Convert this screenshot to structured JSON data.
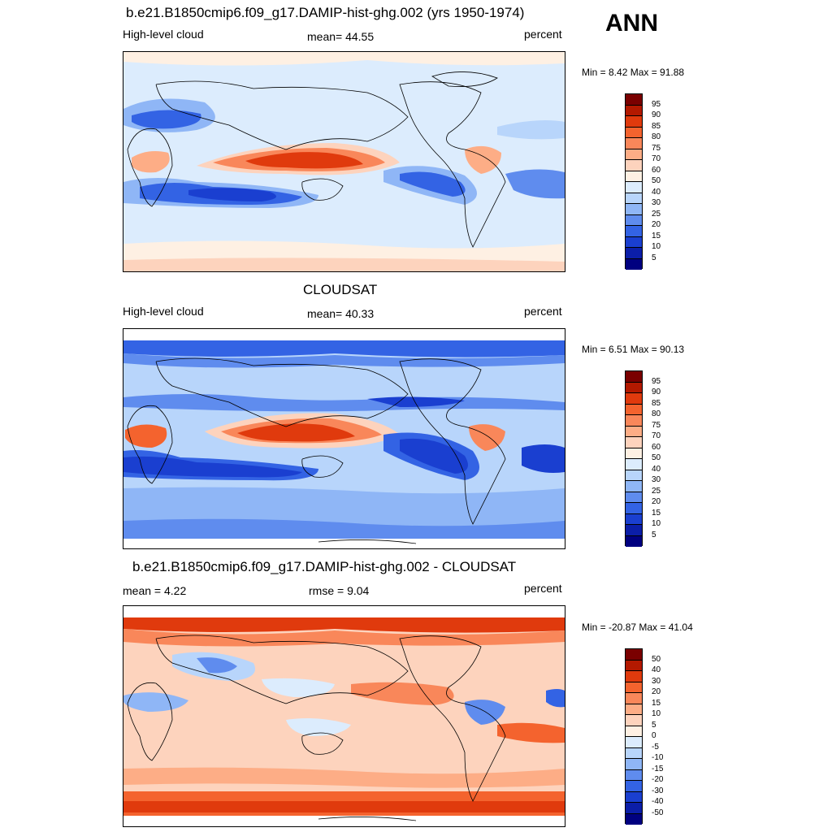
{
  "season": "ANN",
  "panels": [
    {
      "title": "b.e21.B1850cmip6.f09_g17.DAMIP-hist-ghg.002 (yrs 1950-1974)",
      "left_label": "High-level cloud",
      "center_label": "mean=  44.55",
      "right_label": "percent",
      "minmax": "Min =   8.42 Max =  91.88",
      "colorbar": {
        "levels": [
          "95",
          "90",
          "85",
          "80",
          "75",
          "70",
          "60",
          "50",
          "40",
          "30",
          "25",
          "20",
          "15",
          "10",
          "5"
        ],
        "colors": [
          "#7a0000",
          "#b31900",
          "#e03a0d",
          "#f4632e",
          "#f9875a",
          "#fdad86",
          "#fdd3bd",
          "#fef0e3",
          "#dcecfd",
          "#b8d5fb",
          "#8fb6f6",
          "#5f8cee",
          "#3363e4",
          "#1a3fd0",
          "#0b1ea8",
          "#000080"
        ]
      },
      "chart_data": {
        "type": "heatmap",
        "field": "High-level cloud fraction",
        "units": "percent",
        "mean": 44.55,
        "min": 8.42,
        "max": 91.88
      }
    },
    {
      "title": "CLOUDSAT",
      "left_label": "High-level cloud",
      "center_label": "mean=  40.33",
      "right_label": "percent",
      "minmax": "Min =   6.51 Max =  90.13",
      "colorbar": {
        "levels": [
          "95",
          "90",
          "85",
          "80",
          "75",
          "70",
          "60",
          "50",
          "40",
          "30",
          "25",
          "20",
          "15",
          "10",
          "5"
        ],
        "colors": [
          "#7a0000",
          "#b31900",
          "#e03a0d",
          "#f4632e",
          "#f9875a",
          "#fdad86",
          "#fdd3bd",
          "#fef0e3",
          "#dcecfd",
          "#b8d5fb",
          "#8fb6f6",
          "#5f8cee",
          "#3363e4",
          "#1a3fd0",
          "#0b1ea8",
          "#000080"
        ]
      },
      "chart_data": {
        "type": "heatmap",
        "field": "High-level cloud fraction",
        "units": "percent",
        "mean": 40.33,
        "min": 6.51,
        "max": 90.13
      }
    },
    {
      "title": "b.e21.B1850cmip6.f09_g17.DAMIP-hist-ghg.002 - CLOUDSAT",
      "left_label": "mean =   4.22",
      "center_label": "rmse =   9.04",
      "right_label": "percent",
      "minmax": "Min = -20.87 Max =  41.04",
      "colorbar": {
        "levels": [
          "50",
          "40",
          "30",
          "20",
          "15",
          "10",
          "5",
          "0",
          "-5",
          "-10",
          "-15",
          "-20",
          "-30",
          "-40",
          "-50"
        ],
        "colors": [
          "#7a0000",
          "#b31900",
          "#e03a0d",
          "#f4632e",
          "#f9875a",
          "#fdad86",
          "#fdd3bd",
          "#fef0e3",
          "#dcecfd",
          "#b8d5fb",
          "#8fb6f6",
          "#5f8cee",
          "#3363e4",
          "#1a3fd0",
          "#0b1ea8",
          "#000080"
        ]
      },
      "chart_data": {
        "type": "heatmap",
        "field": "High-level cloud fraction difference",
        "units": "percent",
        "mean": 4.22,
        "rmse": 9.04,
        "min": -20.87,
        "max": 41.04
      }
    }
  ]
}
